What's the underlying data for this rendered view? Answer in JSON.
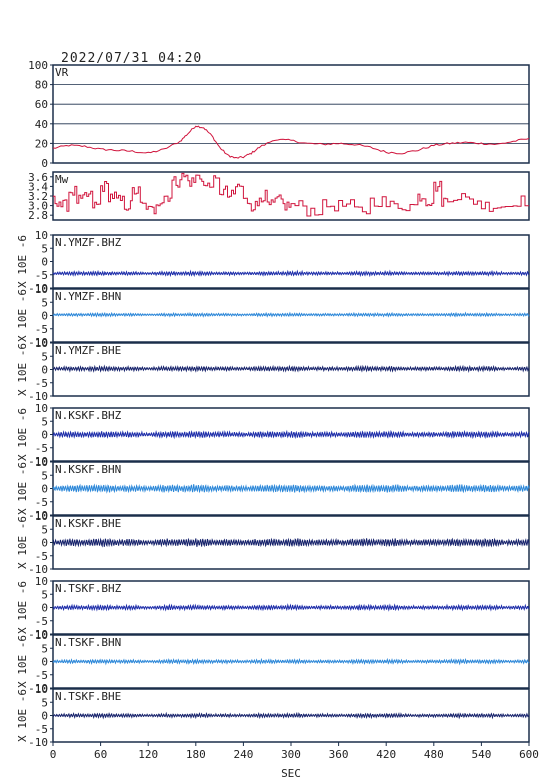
{
  "title": "2022/07/31 04:20",
  "xlabel": "SEC",
  "colors": {
    "frame": "#1b2e4a",
    "vr_mw": "#d0143c",
    "bhz": "#1a2aa8",
    "bhn": "#2a86d8",
    "bhe": "#14206a"
  },
  "chart_data": [
    {
      "type": "line",
      "label": "VR",
      "ylim": [
        0,
        100
      ],
      "yticks": [
        "0",
        "20",
        "40",
        "60",
        "80",
        "100"
      ],
      "grid": true,
      "x": [
        0,
        20,
        40,
        60,
        80,
        100,
        120,
        140,
        160,
        170,
        180,
        190,
        200,
        210,
        220,
        230,
        240,
        250,
        260,
        280,
        300,
        320,
        340,
        360,
        380,
        400,
        420,
        440,
        460,
        480,
        500,
        520,
        540,
        560,
        580,
        600
      ],
      "values": [
        15,
        18,
        17,
        14,
        13,
        12,
        10,
        14,
        22,
        30,
        38,
        36,
        28,
        16,
        8,
        5,
        6,
        10,
        16,
        24,
        23,
        20,
        19,
        20,
        19,
        16,
        11,
        10,
        13,
        18,
        20,
        21,
        20,
        19,
        22,
        25
      ]
    },
    {
      "type": "line",
      "label": "Mw",
      "ylim": [
        2.7,
        3.7
      ],
      "yticks": [
        "2.8",
        "3.0",
        "3.2",
        "3.4",
        "3.6"
      ],
      "x": [
        0,
        10,
        20,
        30,
        40,
        50,
        60,
        70,
        80,
        90,
        100,
        110,
        120,
        130,
        140,
        150,
        160,
        170,
        180,
        190,
        200,
        210,
        220,
        230,
        240,
        250,
        260,
        270,
        280,
        290,
        300,
        320,
        340,
        360,
        380,
        400,
        420,
        440,
        460,
        470,
        480,
        490,
        500,
        520,
        540,
        560,
        580,
        600
      ],
      "values": [
        3.1,
        3.0,
        3.3,
        3.1,
        3.2,
        3.0,
        3.4,
        3.2,
        3.1,
        3.0,
        3.3,
        3.0,
        2.9,
        3.1,
        3.2,
        3.5,
        3.6,
        3.5,
        3.6,
        3.4,
        3.5,
        3.3,
        3.2,
        3.4,
        3.1,
        3.0,
        3.2,
        3.0,
        3.1,
        3.0,
        3.0,
        2.9,
        3.0,
        3.0,
        2.9,
        3.1,
        3.0,
        3.0,
        3.2,
        3.1,
        3.4,
        3.1,
        3.2,
        3.1,
        3.0,
        3.0,
        3.1,
        3.0
      ]
    },
    {
      "type": "line",
      "label": "N.YMZF.BHZ",
      "ylim": [
        -10,
        10
      ],
      "yticks": [
        "-10",
        "-5",
        "0",
        "5",
        "10"
      ],
      "offset": -4.5,
      "amplitude": 0.5,
      "color_key": "bhz",
      "ylabel": "X 10E -6"
    },
    {
      "type": "line",
      "label": "N.YMZF.BHN",
      "ylim": [
        -10,
        10
      ],
      "yticks": [
        "-10",
        "-5",
        "0",
        "5",
        "10"
      ],
      "offset": 0.3,
      "amplitude": 0.4,
      "color_key": "bhn",
      "ylabel": "X 10E -6"
    },
    {
      "type": "line",
      "label": "N.YMZF.BHE",
      "ylim": [
        -10,
        10
      ],
      "yticks": [
        "-10",
        "-5",
        "0",
        "5",
        "10"
      ],
      "offset": 0.3,
      "amplitude": 0.6,
      "color_key": "bhe",
      "ylabel": "X 10E -6"
    },
    {
      "type": "line",
      "label": "N.KSKF.BHZ",
      "ylim": [
        -10,
        10
      ],
      "yticks": [
        "-10",
        "-5",
        "0",
        "5",
        "10"
      ],
      "offset": 0.0,
      "amplitude": 0.8,
      "color_key": "bhz",
      "ylabel": "X 10E -6"
    },
    {
      "type": "line",
      "label": "N.KSKF.BHN",
      "ylim": [
        -10,
        10
      ],
      "yticks": [
        "-10",
        "-5",
        "0",
        "5",
        "10"
      ],
      "offset": 0.0,
      "amplitude": 1.0,
      "color_key": "bhn",
      "ylabel": "X 10E -6"
    },
    {
      "type": "line",
      "label": "N.KSKF.BHE",
      "ylim": [
        -10,
        10
      ],
      "yticks": [
        "-10",
        "-5",
        "0",
        "5",
        "10"
      ],
      "offset": 0.0,
      "amplitude": 1.0,
      "color_key": "bhe",
      "ylabel": "X 10E -6"
    },
    {
      "type": "line",
      "label": "N.TSKF.BHZ",
      "ylim": [
        -10,
        10
      ],
      "yticks": [
        "-10",
        "-5",
        "0",
        "5",
        "10"
      ],
      "offset": 0.0,
      "amplitude": 0.6,
      "color_key": "bhz",
      "ylabel": "X 10E -6"
    },
    {
      "type": "line",
      "label": "N.TSKF.BHN",
      "ylim": [
        -10,
        10
      ],
      "yticks": [
        "-10",
        "-5",
        "0",
        "5",
        "10"
      ],
      "offset": 0.0,
      "amplitude": 0.5,
      "color_key": "bhn",
      "ylabel": "X 10E -6"
    },
    {
      "type": "line",
      "label": "N.TSKF.BHE",
      "ylim": [
        -10,
        10
      ],
      "yticks": [
        "-10",
        "-5",
        "0",
        "5",
        "10"
      ],
      "offset": 0.0,
      "amplitude": 0.5,
      "color_key": "bhe",
      "ylabel": "X 10E -6"
    }
  ],
  "xaxis": {
    "xlim": [
      0,
      600
    ],
    "ticks": [
      "0",
      "60",
      "120",
      "180",
      "240",
      "300",
      "360",
      "420",
      "480",
      "540",
      "600"
    ]
  }
}
